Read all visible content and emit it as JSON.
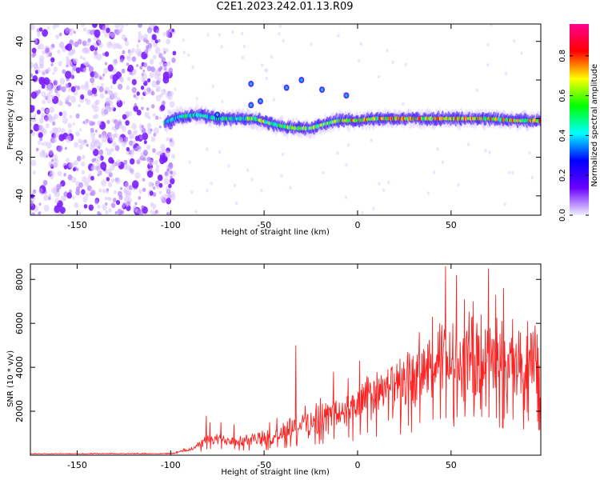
{
  "figure": {
    "title": "C2E1.2023.242.01.13.R09"
  },
  "chart_data": [
    {
      "type": "heatmap",
      "xlabel": "Height of straight line (km)",
      "ylabel": "Frequency (Hz)",
      "xlim": [
        -175,
        98
      ],
      "ylim": [
        -50,
        49
      ],
      "xticks": [
        -150,
        -100,
        -50,
        0,
        50
      ],
      "yticks": [
        -40,
        -20,
        0,
        20,
        40
      ],
      "colorbar": {
        "label": "Normalized spectral amplitude",
        "range": [
          0,
          0.96
        ],
        "ticks": [
          "0.0",
          "0.2",
          "0.4",
          "0.6",
          "0.8"
        ],
        "tick_values": [
          0,
          0.2,
          0.4,
          0.6,
          0.8
        ],
        "colormap": [
          "#f0f0ff",
          "#6a00ff",
          "#0000ff",
          "#00ffff",
          "#00ff00",
          "#ffff00",
          "#ff0000",
          "#ff0090"
        ]
      },
      "noise_region_x": [
        -175,
        -98
      ],
      "ridge": [
        [
          -103,
          -2
        ],
        [
          -95,
          1
        ],
        [
          -85,
          2
        ],
        [
          -75,
          0
        ],
        [
          -65,
          0
        ],
        [
          -55,
          0
        ],
        [
          -48,
          -2
        ],
        [
          -40,
          -4
        ],
        [
          -33,
          -5
        ],
        [
          -25,
          -5
        ],
        [
          -18,
          -3
        ],
        [
          -10,
          -1
        ],
        [
          0,
          -1
        ],
        [
          10,
          0
        ],
        [
          30,
          0
        ],
        [
          50,
          0
        ],
        [
          70,
          0
        ],
        [
          85,
          -1
        ],
        [
          98,
          -1
        ]
      ],
      "blobs": [
        [
          -52,
          9
        ],
        [
          -57,
          7
        ],
        [
          -30,
          20
        ],
        [
          -38,
          16
        ],
        [
          -19,
          15
        ],
        [
          -6,
          12
        ],
        [
          -57,
          18
        ],
        [
          -75,
          2
        ]
      ]
    },
    {
      "type": "line",
      "xlabel": "Height of straight line (km)",
      "ylabel": "SNR (10 * v/v)",
      "xlim": [
        -175,
        98
      ],
      "ylim": [
        0,
        8700
      ],
      "xticks": [
        -150,
        -100,
        -50,
        0,
        50
      ],
      "yticks": [
        2000,
        4000,
        6000,
        8000
      ],
      "color": "#ff2020",
      "envelope": [
        [
          -175,
          60,
          20
        ],
        [
          -100,
          70,
          25
        ],
        [
          -90,
          250,
          80
        ],
        [
          -80,
          700,
          200
        ],
        [
          -60,
          700,
          250
        ],
        [
          -45,
          800,
          300
        ],
        [
          -35,
          1300,
          500
        ],
        [
          -20,
          1700,
          600
        ],
        [
          -5,
          2000,
          700
        ],
        [
          10,
          2800,
          900
        ],
        [
          20,
          3000,
          1000
        ],
        [
          30,
          3500,
          1100
        ],
        [
          40,
          4000,
          1200
        ],
        [
          50,
          4300,
          1600
        ],
        [
          60,
          4400,
          1700
        ],
        [
          70,
          4300,
          1700
        ],
        [
          80,
          4100,
          1600
        ],
        [
          90,
          3900,
          1500
        ],
        [
          98,
          3800,
          1400
        ]
      ],
      "spikes": [
        [
          -81,
          1800
        ],
        [
          -79,
          1500
        ],
        [
          -73,
          1500
        ],
        [
          -66,
          1400
        ],
        [
          -47,
          1500
        ],
        [
          -43,
          1700
        ],
        [
          -33,
          5000
        ],
        [
          -20,
          2600
        ],
        [
          -13,
          3800
        ],
        [
          -5,
          3500
        ],
        [
          1,
          4300
        ],
        [
          5,
          3600
        ],
        [
          27,
          4700
        ],
        [
          33,
          5600
        ],
        [
          40,
          6300
        ],
        [
          44,
          6000
        ],
        [
          47,
          8600
        ],
        [
          51,
          6000
        ],
        [
          53,
          8200
        ],
        [
          57,
          7100
        ],
        [
          62,
          7000
        ],
        [
          66,
          6400
        ],
        [
          70,
          8500
        ],
        [
          74,
          7300
        ],
        [
          78,
          7600
        ],
        [
          83,
          6200
        ],
        [
          91,
          6100
        ],
        [
          96,
          5500
        ]
      ]
    }
  ]
}
